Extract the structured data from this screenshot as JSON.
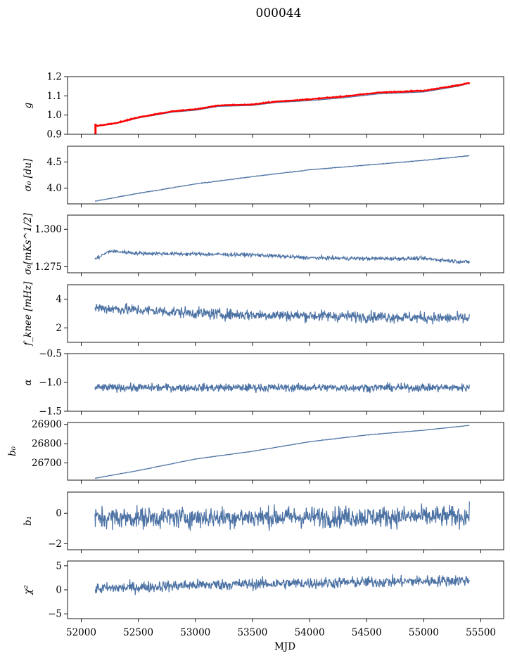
{
  "suptitle": "000044",
  "colors": {
    "series": "#4c72a4",
    "fit": "#ff0000",
    "frame": "#000000"
  },
  "chart_data": {
    "type": "line",
    "xlabel": "MJD",
    "xlim": [
      51880,
      55700
    ],
    "x_ticks": [
      52000,
      52500,
      53000,
      53500,
      54000,
      54500,
      55000,
      55500
    ],
    "x_range": [
      52120,
      55400
    ],
    "panels": [
      {
        "id": "g",
        "ylabel": "g",
        "ylim": [
          0.9,
          1.2
        ],
        "yticks": [
          0.9,
          1.0,
          1.1,
          1.2
        ],
        "ytick_labels": [
          "0.9",
          "1.0",
          "1.1",
          "1.2"
        ],
        "trend": [
          [
            52120,
            0.94
          ],
          [
            52300,
            0.955
          ],
          [
            52500,
            0.985
          ],
          [
            52800,
            1.015
          ],
          [
            53000,
            1.025
          ],
          [
            53200,
            1.045
          ],
          [
            53500,
            1.05
          ],
          [
            53700,
            1.065
          ],
          [
            54000,
            1.075
          ],
          [
            54300,
            1.09
          ],
          [
            54600,
            1.11
          ],
          [
            55000,
            1.12
          ],
          [
            55300,
            1.15
          ],
          [
            55400,
            1.165
          ]
        ],
        "noise": 0.0,
        "fit_trend": [
          [
            52120,
            0.942
          ],
          [
            52300,
            0.958
          ],
          [
            52500,
            0.988
          ],
          [
            52800,
            1.02
          ],
          [
            53000,
            1.03
          ],
          [
            53200,
            1.05
          ],
          [
            53500,
            1.055
          ],
          [
            53700,
            1.07
          ],
          [
            54000,
            1.082
          ],
          [
            54300,
            1.097
          ],
          [
            54600,
            1.117
          ],
          [
            55000,
            1.127
          ],
          [
            55300,
            1.155
          ],
          [
            55400,
            1.168
          ]
        ]
      },
      {
        "id": "sigma0",
        "ylabel": "σ₀ [du]",
        "ylim": [
          3.7,
          4.8
        ],
        "yticks": [
          4.0,
          4.5
        ],
        "ytick_labels": [
          "4.0",
          "4.5"
        ],
        "trend": [
          [
            52120,
            3.75
          ],
          [
            52500,
            3.9
          ],
          [
            53000,
            4.08
          ],
          [
            53500,
            4.22
          ],
          [
            54000,
            4.35
          ],
          [
            54500,
            4.44
          ],
          [
            55000,
            4.53
          ],
          [
            55400,
            4.62
          ]
        ],
        "noise": 0.005
      },
      {
        "id": "sigma0_mks",
        "ylabel": "σ₀[mKs^1/2]",
        "ylim": [
          1.271,
          1.3095
        ],
        "yticks": [
          1.275,
          1.3
        ],
        "ytick_labels": [
          "1.275",
          "1.300"
        ],
        "trend": [
          [
            52120,
            1.28
          ],
          [
            52250,
            1.2855
          ],
          [
            52500,
            1.284
          ],
          [
            53000,
            1.2835
          ],
          [
            53500,
            1.283
          ],
          [
            54000,
            1.281
          ],
          [
            54500,
            1.2805
          ],
          [
            55000,
            1.2805
          ],
          [
            55400,
            1.278
          ]
        ],
        "noise": 0.0009
      },
      {
        "id": "fknee",
        "ylabel": "f_knee [mHz]",
        "ylim": [
          1.0,
          5.0
        ],
        "yticks": [
          2,
          4
        ],
        "ytick_labels": [
          "2",
          "4"
        ],
        "trend": [
          [
            52120,
            3.4
          ],
          [
            52600,
            3.2
          ],
          [
            53200,
            2.95
          ],
          [
            54000,
            2.85
          ],
          [
            54800,
            2.75
          ],
          [
            55400,
            2.65
          ]
        ],
        "noise": 0.28
      },
      {
        "id": "alpha",
        "ylabel": "α",
        "ylim": [
          -1.5,
          -0.5
        ],
        "yticks": [
          -1.5,
          -1.0,
          -0.5
        ],
        "ytick_labels": [
          "−1.5",
          "−1.0",
          "−0.5"
        ],
        "trend": [
          [
            52120,
            -1.09
          ],
          [
            55400,
            -1.09
          ]
        ],
        "noise": 0.05
      },
      {
        "id": "b0",
        "ylabel": "b₀",
        "ylim": [
          26610,
          26910
        ],
        "yticks": [
          26700,
          26800,
          26900
        ],
        "ytick_labels": [
          "26700",
          "26800",
          "26900"
        ],
        "trend": [
          [
            52120,
            26620
          ],
          [
            52500,
            26660
          ],
          [
            53000,
            26720
          ],
          [
            53500,
            26760
          ],
          [
            54000,
            26810
          ],
          [
            54500,
            26845
          ],
          [
            55000,
            26870
          ],
          [
            55400,
            26895
          ]
        ],
        "noise": 1.0
      },
      {
        "id": "b1",
        "ylabel": "b₁",
        "ylim": [
          -2.4,
          1.4
        ],
        "yticks": [
          -2,
          0
        ],
        "ytick_labels": [
          "−2",
          "0"
        ],
        "trend": [
          [
            52120,
            -0.3
          ],
          [
            55400,
            -0.2
          ]
        ],
        "noise": 0.5
      },
      {
        "id": "chi2",
        "ylabel": "χ²",
        "ylim": [
          -6,
          6
        ],
        "yticks": [
          -5,
          0,
          5
        ],
        "ytick_labels": [
          "−5",
          "0",
          "5"
        ],
        "trend": [
          [
            52120,
            0.2
          ],
          [
            53000,
            1.0
          ],
          [
            54000,
            1.4
          ],
          [
            55000,
            1.8
          ],
          [
            55400,
            2.0
          ]
        ],
        "noise": 0.85
      }
    ],
    "x_tick_labels": [
      "52000",
      "52500",
      "53000",
      "53500",
      "54000",
      "54500",
      "55000",
      "55500"
    ]
  }
}
